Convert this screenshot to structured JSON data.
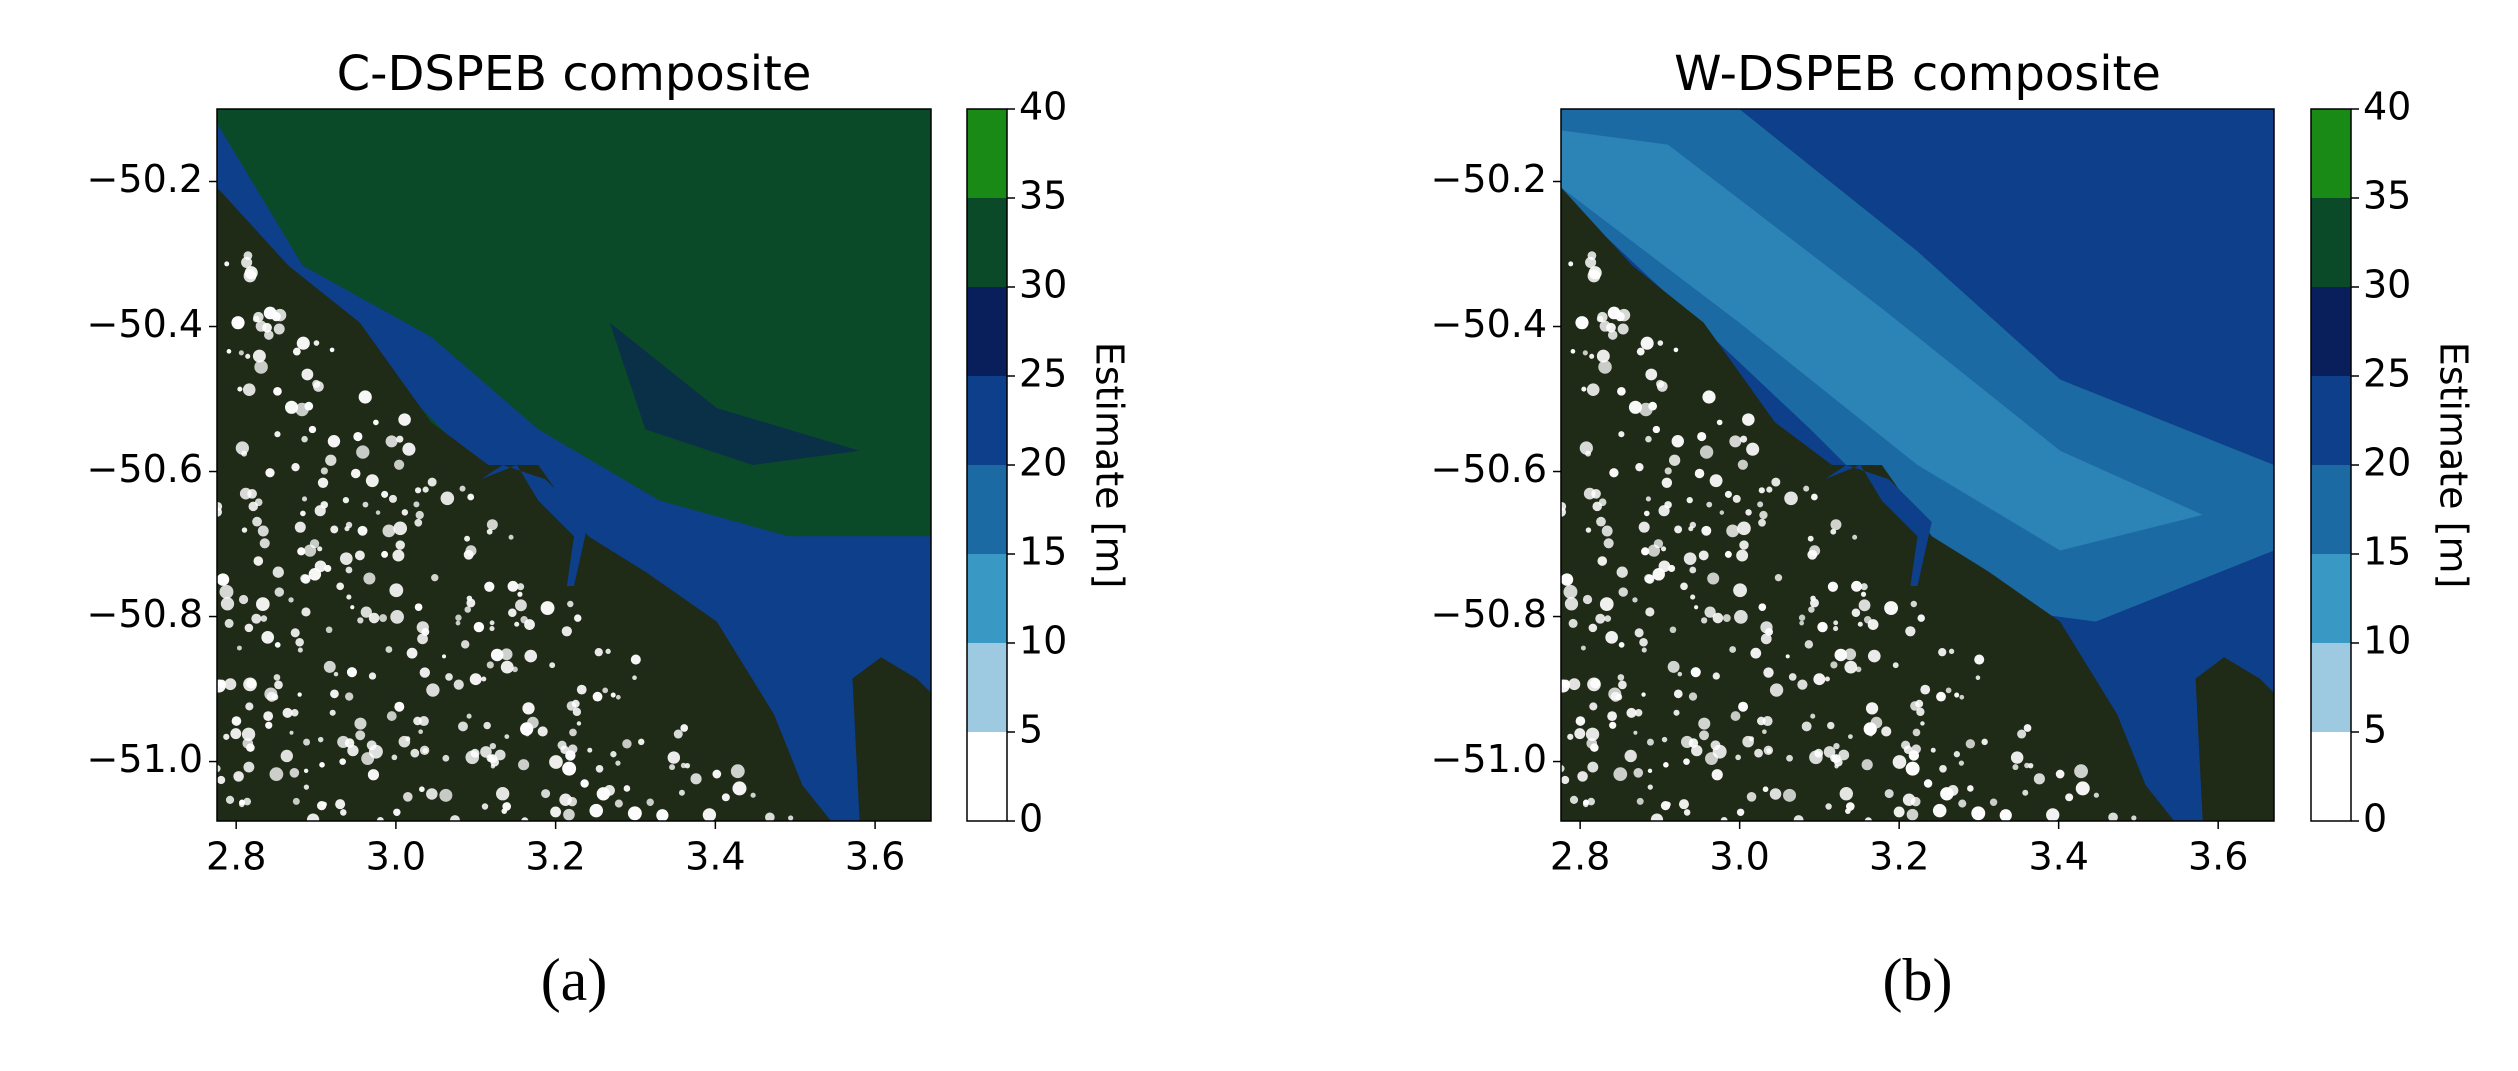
{
  "chart_data": [
    {
      "type": "map",
      "title": "C-DSPEB composite",
      "panel_label": "(a)",
      "xlim": [
        2.776,
        3.67
      ],
      "ylim": [
        -51.082,
        -50.1
      ],
      "xticks": [
        2.8,
        {
          "value": 3,
          "label": "3.0"
        },
        3.2,
        3.4,
        3.6
      ],
      "yticks": [
        {
          "value": -50.2,
          "label": "−50.2"
        },
        {
          "value": -50.4,
          "label": "−50.4"
        },
        {
          "value": -50.6,
          "label": "−50.6"
        },
        {
          "value": -50.8,
          "label": "−50.8"
        },
        {
          "value": -51,
          "label": "−51.0"
        }
      ],
      "colorbar": {
        "label": "Estimate [m]",
        "ticks": [
          0,
          5,
          10,
          15,
          20,
          25,
          30,
          35,
          40
        ],
        "colors": [
          "#ffffff",
          "#9ecae1",
          "#3a98c4",
          "#1c6aa3",
          "#0d3f8a",
          "#081f5c",
          "#0b4a28",
          "#1a8a16"
        ]
      }
    },
    {
      "type": "map",
      "title": "W-DSPEB composite",
      "panel_label": "(b)",
      "xlim": [
        2.776,
        3.67
      ],
      "ylim": [
        -51.082,
        -50.1
      ],
      "xticks": [
        2.8,
        {
          "value": 3,
          "label": "3.0"
        },
        3.2,
        3.4,
        3.6
      ],
      "yticks": [
        {
          "value": -50.2,
          "label": "−50.2"
        },
        {
          "value": -50.4,
          "label": "−50.4"
        },
        {
          "value": -50.6,
          "label": "−50.6"
        },
        {
          "value": -50.8,
          "label": "−50.8"
        },
        {
          "value": -51,
          "label": "−51.0"
        }
      ],
      "colorbar": {
        "label": "Estimate [m]",
        "ticks": [
          0,
          5,
          10,
          15,
          20,
          25,
          30,
          35,
          40
        ],
        "colors": [
          "#ffffff",
          "#9ecae1",
          "#3a98c4",
          "#1c6aa3",
          "#0d3f8a",
          "#081f5c",
          "#0b4a28",
          "#1a8a16"
        ]
      }
    }
  ]
}
